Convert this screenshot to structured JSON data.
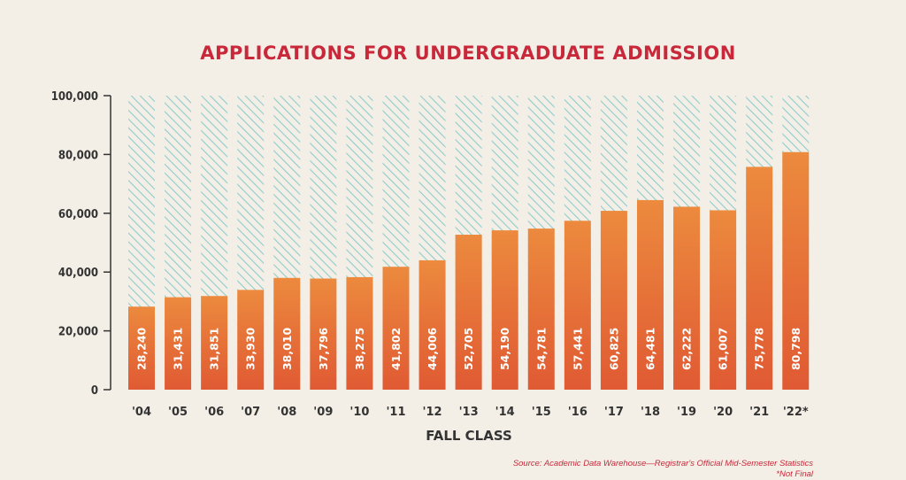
{
  "chart_data": {
    "type": "bar",
    "title": "APPLICATIONS FOR UNDERGRADUATE ADMISSION",
    "xlabel": "FALL CLASS",
    "ylabel": "",
    "ylim": [
      0,
      100000
    ],
    "yticks": [
      "0",
      "20,000",
      "40,000",
      "60,000",
      "80,000",
      "100,000"
    ],
    "categories": [
      "'04",
      "'05",
      "'06",
      "'07",
      "'08",
      "'09",
      "'10",
      "'11",
      "'12",
      "'13",
      "'14",
      "'15",
      "'16",
      "'17",
      "'18",
      "'19",
      "'20",
      "'21",
      "'22*"
    ],
    "values": [
      28240,
      31431,
      31851,
      33930,
      38010,
      37796,
      38275,
      41802,
      44006,
      52705,
      54190,
      54781,
      57441,
      60825,
      64481,
      62222,
      61007,
      75778,
      80798
    ],
    "value_labels": [
      "28,240",
      "31,431",
      "31,851",
      "33,930",
      "38,010",
      "37,796",
      "38,275",
      "41,802",
      "44,006",
      "52,705",
      "54,190",
      "54,781",
      "57,441",
      "60,825",
      "64,481",
      "62,222",
      "61,007",
      "75,778",
      "80,798"
    ],
    "grid": false,
    "colors": {
      "bar_top": "#ec8a3e",
      "bar_bottom": "#e05a33",
      "hatch": "#8fcccd",
      "title": "#c8283a"
    }
  },
  "source": {
    "line1": "Source: Academic Data Warehouse—Registrar's Official Mid-Semester Statistics",
    "line2": "*Not Final"
  }
}
